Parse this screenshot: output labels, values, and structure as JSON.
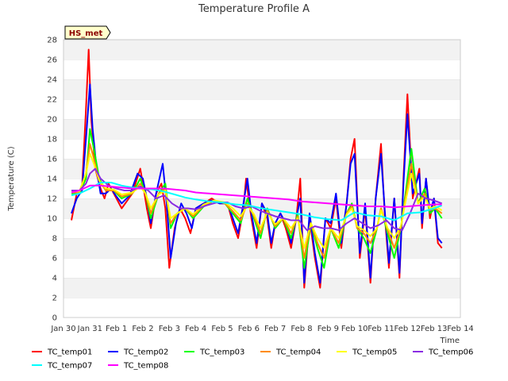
{
  "chart_data": {
    "type": "line",
    "title": "Temperature Profile A",
    "xlabel": "Time",
    "ylabel": "Temperature (C)",
    "annotation": "HS_met",
    "ylim": [
      0,
      28
    ],
    "yticks": [
      0,
      2,
      4,
      6,
      8,
      10,
      12,
      14,
      16,
      18,
      20,
      22,
      24,
      26,
      28
    ],
    "xlim": [
      0,
      15
    ],
    "xtick_labels": [
      "Jan 30",
      "Jan 31",
      "Feb 1",
      "Feb 2",
      "Feb 3",
      "Feb 4",
      "Feb 5",
      "Feb 6",
      "Feb 7",
      "Feb 8",
      "Feb 9",
      "Feb 10",
      "Feb 11",
      "Feb 12",
      "Feb 13",
      "Feb 14"
    ],
    "grid": "horizontal bands",
    "legend_position": "bottom",
    "series": [
      {
        "name": "TC_temp01",
        "color": "#ff0000",
        "x": [
          0.3,
          0.5,
          0.7,
          0.85,
          0.95,
          1.05,
          1.2,
          1.4,
          1.55,
          1.7,
          2.0,
          2.2,
          2.6,
          2.9,
          3.0,
          3.15,
          3.3,
          3.5,
          3.7,
          3.85,
          4.0,
          4.2,
          4.4,
          4.6,
          4.8,
          5.0,
          5.3,
          5.6,
          5.9,
          6.2,
          6.4,
          6.6,
          6.8,
          6.9,
          7.1,
          7.3,
          7.5,
          7.7,
          7.85,
          8.0,
          8.2,
          8.4,
          8.6,
          8.8,
          8.95,
          9.1,
          9.3,
          9.5,
          9.7,
          9.9,
          10.1,
          10.3,
          10.5,
          10.7,
          10.85,
          11.0,
          11.2,
          11.4,
          11.6,
          11.8,
          12.0,
          12.15,
          12.3,
          12.5,
          12.7,
          12.85,
          13.0,
          13.2,
          13.45,
          13.55,
          13.7,
          13.85,
          14.0,
          14.15,
          14.3
        ],
        "y": [
          9.8,
          12.5,
          13.0,
          21.0,
          27.0,
          20.0,
          15.0,
          13.0,
          12.0,
          13.5,
          12.0,
          11.0,
          12.5,
          15.0,
          13.5,
          11.0,
          9.0,
          12.5,
          13.5,
          11.0,
          5.0,
          9.0,
          11.0,
          10.0,
          8.5,
          11.0,
          11.5,
          12.0,
          11.5,
          11.5,
          9.5,
          8.0,
          11.0,
          14.0,
          10.0,
          7.0,
          11.5,
          10.0,
          7.0,
          9.5,
          10.5,
          9.0,
          7.0,
          10.0,
          14.0,
          3.0,
          10.0,
          6.0,
          3.0,
          10.0,
          9.0,
          12.0,
          7.0,
          11.5,
          16.0,
          18.0,
          6.0,
          11.0,
          3.5,
          12.0,
          17.5,
          10.0,
          5.0,
          12.0,
          4.0,
          14.0,
          22.5,
          12.0,
          15.0,
          9.0,
          14.0,
          10.0,
          12.0,
          7.5,
          7.0
        ]
      },
      {
        "name": "TC_temp02",
        "color": "#0000ff",
        "x": [
          0.3,
          0.5,
          0.7,
          0.85,
          1.0,
          1.1,
          1.25,
          1.4,
          1.6,
          1.8,
          2.0,
          2.2,
          2.5,
          2.8,
          3.0,
          3.15,
          3.3,
          3.5,
          3.75,
          3.9,
          4.05,
          4.25,
          4.45,
          4.65,
          4.85,
          5.0,
          5.3,
          5.6,
          5.9,
          6.2,
          6.4,
          6.6,
          6.8,
          6.95,
          7.1,
          7.3,
          7.5,
          7.7,
          7.85,
          8.0,
          8.2,
          8.4,
          8.6,
          8.8,
          8.95,
          9.1,
          9.3,
          9.5,
          9.7,
          9.9,
          10.1,
          10.3,
          10.5,
          10.7,
          10.85,
          11.0,
          11.2,
          11.4,
          11.6,
          11.8,
          12.0,
          12.15,
          12.3,
          12.5,
          12.7,
          12.85,
          13.0,
          13.2,
          13.45,
          13.55,
          13.7,
          13.85,
          14.0,
          14.15,
          14.3
        ],
        "y": [
          10.5,
          12.0,
          12.8,
          18.0,
          23.5,
          19.0,
          15.0,
          12.5,
          12.5,
          13.0,
          12.2,
          11.5,
          12.3,
          14.5,
          14.0,
          12.0,
          9.5,
          12.5,
          15.5,
          11.5,
          6.0,
          9.5,
          11.5,
          10.5,
          9.0,
          11.0,
          11.5,
          11.8,
          11.5,
          11.5,
          10.0,
          8.5,
          11.5,
          14.0,
          10.5,
          7.5,
          11.5,
          10.5,
          7.5,
          9.5,
          10.5,
          9.5,
          7.5,
          10.0,
          12.0,
          3.5,
          10.5,
          6.5,
          3.5,
          10.0,
          9.5,
          12.5,
          7.5,
          11.5,
          15.5,
          16.5,
          6.5,
          11.5,
          4.0,
          12.0,
          16.5,
          10.5,
          5.5,
          12.0,
          4.5,
          13.5,
          20.5,
          12.5,
          14.5,
          9.5,
          14.0,
          10.5,
          12.0,
          8.0,
          7.5
        ]
      },
      {
        "name": "TC_temp03",
        "color": "#00ff00",
        "x": [
          0.3,
          0.6,
          0.85,
          1.0,
          1.15,
          1.35,
          1.6,
          1.9,
          2.2,
          2.6,
          2.9,
          3.1,
          3.3,
          3.6,
          3.85,
          4.05,
          4.3,
          4.6,
          4.9,
          5.3,
          5.7,
          6.1,
          6.4,
          6.7,
          6.95,
          7.2,
          7.45,
          7.7,
          8.0,
          8.3,
          8.6,
          8.85,
          9.1,
          9.35,
          9.6,
          9.85,
          10.1,
          10.4,
          10.7,
          10.9,
          11.1,
          11.35,
          11.6,
          11.85,
          12.0,
          12.25,
          12.5,
          12.75,
          12.95,
          13.15,
          13.4,
          13.65,
          13.85,
          14.05,
          14.3
        ],
        "y": [
          12.5,
          12.5,
          14.0,
          19.0,
          17.0,
          14.0,
          12.8,
          12.8,
          12.0,
          12.5,
          14.0,
          12.5,
          10.0,
          12.5,
          13.5,
          9.0,
          10.5,
          11.0,
          10.0,
          11.2,
          11.8,
          11.5,
          10.5,
          9.5,
          12.0,
          10.0,
          8.0,
          11.0,
          9.0,
          10.0,
          8.0,
          10.5,
          5.0,
          9.5,
          7.0,
          5.0,
          9.0,
          7.0,
          10.5,
          11.5,
          9.0,
          8.0,
          6.5,
          9.0,
          11.0,
          8.5,
          6.0,
          9.0,
          13.0,
          17.0,
          11.5,
          13.0,
          10.5,
          11.0,
          10.0
        ]
      },
      {
        "name": "TC_temp04",
        "color": "#ff8c00",
        "x": [
          0.3,
          0.6,
          0.85,
          1.0,
          1.15,
          1.35,
          1.6,
          1.9,
          2.2,
          2.6,
          2.9,
          3.1,
          3.3,
          3.6,
          3.85,
          4.05,
          4.3,
          4.6,
          4.9,
          5.3,
          5.7,
          6.1,
          6.4,
          6.7,
          6.95,
          7.2,
          7.45,
          7.7,
          8.0,
          8.3,
          8.6,
          8.85,
          9.1,
          9.35,
          9.6,
          9.85,
          10.1,
          10.4,
          10.7,
          10.9,
          11.1,
          11.35,
          11.6,
          11.85,
          12.0,
          12.25,
          12.5,
          12.75,
          12.95,
          13.15,
          13.4,
          13.65,
          13.85,
          14.05,
          14.3
        ],
        "y": [
          12.6,
          12.6,
          14.5,
          17.5,
          16.0,
          13.8,
          12.8,
          12.8,
          12.2,
          12.5,
          13.5,
          12.5,
          10.5,
          12.5,
          13.0,
          9.5,
          10.5,
          11.0,
          10.2,
          11.3,
          11.8,
          11.5,
          10.7,
          9.8,
          11.5,
          10.2,
          8.5,
          10.8,
          9.2,
          10.0,
          8.5,
          10.2,
          6.0,
          9.5,
          7.5,
          6.0,
          9.0,
          7.5,
          10.5,
          11.2,
          9.0,
          8.5,
          7.5,
          9.0,
          11.0,
          8.8,
          7.0,
          9.0,
          12.5,
          15.5,
          11.5,
          12.5,
          10.8,
          11.0,
          10.5
        ]
      },
      {
        "name": "TC_temp05",
        "color": "#ffff00",
        "x": [
          0.3,
          0.6,
          0.85,
          1.0,
          1.15,
          1.35,
          1.6,
          1.9,
          2.2,
          2.6,
          2.9,
          3.1,
          3.3,
          3.6,
          3.85,
          4.05,
          4.3,
          4.6,
          4.9,
          5.3,
          5.7,
          6.1,
          6.4,
          6.7,
          6.95,
          7.2,
          7.45,
          7.7,
          8.0,
          8.3,
          8.6,
          8.85,
          9.1,
          9.35,
          9.6,
          9.85,
          10.1,
          10.4,
          10.7,
          10.9,
          11.1,
          11.35,
          11.6,
          11.85,
          12.0,
          12.25,
          12.5,
          12.75,
          12.95,
          13.15,
          13.4,
          13.65,
          13.85,
          14.05,
          14.3
        ],
        "y": [
          12.7,
          12.7,
          14.5,
          16.5,
          15.5,
          13.8,
          13.0,
          12.9,
          12.4,
          12.6,
          13.2,
          12.5,
          11.0,
          12.4,
          12.8,
          10.0,
          10.5,
          11.0,
          10.4,
          11.4,
          11.8,
          11.6,
          11.0,
          10.2,
          11.3,
          10.4,
          9.0,
          10.6,
          9.4,
          10.0,
          9.0,
          10.0,
          7.0,
          9.5,
          8.0,
          7.0,
          9.0,
          8.0,
          10.4,
          11.0,
          9.2,
          8.8,
          8.2,
          9.0,
          10.8,
          9.0,
          8.0,
          9.2,
          12.0,
          14.5,
          11.5,
          12.2,
          11.0,
          11.2,
          10.8
        ]
      },
      {
        "name": "TC_temp06",
        "color": "#8a2be2",
        "x": [
          0.3,
          0.6,
          0.85,
          1.0,
          1.2,
          1.4,
          1.7,
          2.0,
          2.3,
          2.6,
          2.9,
          3.2,
          3.5,
          3.8,
          4.1,
          4.4,
          4.7,
          5.0,
          5.4,
          5.8,
          6.2,
          6.5,
          6.8,
          7.1,
          7.4,
          7.7,
          8.0,
          8.3,
          8.6,
          8.9,
          9.2,
          9.5,
          9.8,
          10.1,
          10.4,
          10.7,
          11.0,
          11.3,
          11.6,
          11.9,
          12.2,
          12.5,
          12.8,
          13.1,
          13.4,
          13.7,
          14.0,
          14.3
        ],
        "y": [
          12.8,
          12.8,
          13.5,
          14.5,
          15.0,
          14.0,
          13.3,
          13.0,
          12.8,
          12.8,
          13.2,
          12.8,
          12.0,
          12.3,
          11.5,
          11.0,
          11.0,
          10.9,
          11.3,
          11.6,
          11.6,
          11.2,
          11.0,
          11.2,
          10.8,
          10.5,
          10.2,
          10.0,
          9.8,
          9.8,
          8.8,
          9.2,
          9.0,
          9.0,
          8.8,
          9.5,
          10.0,
          9.5,
          9.0,
          9.3,
          9.8,
          9.0,
          8.8,
          10.5,
          12.5,
          12.0,
          11.8,
          11.5
        ]
      },
      {
        "name": "TC_temp07",
        "color": "#00ffff",
        "x": [
          0.3,
          0.6,
          1.0,
          1.4,
          1.8,
          2.2,
          2.6,
          3.0,
          3.4,
          3.8,
          4.2,
          4.6,
          5.0,
          5.5,
          6.0,
          6.5,
          7.0,
          7.5,
          8.0,
          8.5,
          9.0,
          9.5,
          10.0,
          10.5,
          11.0,
          11.5,
          12.0,
          12.5,
          13.0,
          13.5,
          14.0,
          14.3
        ],
        "y": [
          12.3,
          12.5,
          13.0,
          13.6,
          13.6,
          13.3,
          13.1,
          13.0,
          12.9,
          12.7,
          12.4,
          12.1,
          11.9,
          11.7,
          11.6,
          11.4,
          11.3,
          11.0,
          10.8,
          10.6,
          10.4,
          10.1,
          9.9,
          9.8,
          10.6,
          10.3,
          10.2,
          9.8,
          10.5,
          10.6,
          11.0,
          11.3
        ]
      },
      {
        "name": "TC_temp08",
        "color": "#ff00ff",
        "x": [
          0.3,
          0.6,
          1.0,
          1.4,
          1.8,
          2.2,
          2.6,
          3.0,
          3.4,
          3.8,
          4.2,
          4.6,
          5.0,
          5.5,
          6.0,
          6.5,
          7.0,
          7.5,
          8.0,
          8.5,
          9.0,
          9.5,
          10.0,
          10.5,
          11.0,
          11.5,
          12.0,
          12.5,
          13.0,
          13.5,
          14.0,
          14.3
        ],
        "y": [
          12.6,
          12.8,
          13.3,
          13.3,
          13.2,
          13.1,
          13.0,
          13.0,
          13.0,
          13.0,
          12.9,
          12.8,
          12.6,
          12.5,
          12.4,
          12.3,
          12.2,
          12.1,
          12.0,
          11.9,
          11.7,
          11.6,
          11.5,
          11.4,
          11.3,
          11.2,
          11.2,
          11.1,
          11.2,
          11.3,
          11.4,
          11.4
        ]
      }
    ]
  }
}
